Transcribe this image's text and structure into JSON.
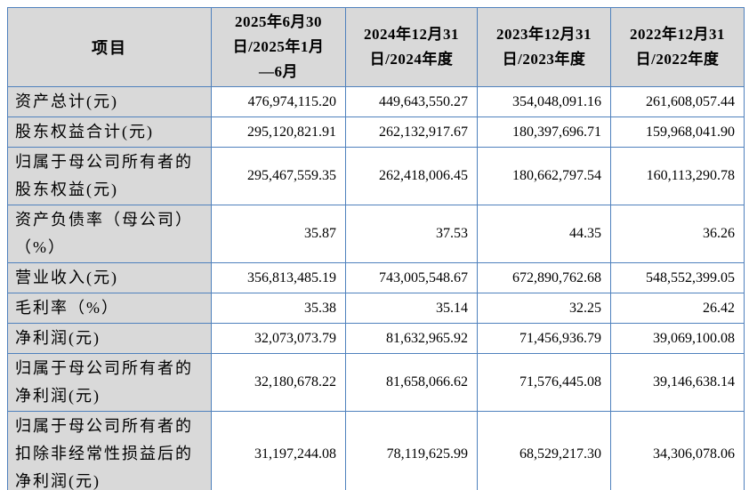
{
  "table": {
    "colors": {
      "border": "#4f81bd",
      "header_bg": "#d9d9d9",
      "cell_bg": "#ffffff",
      "text": "#000000"
    },
    "header": {
      "item_label": "项目",
      "periods": [
        "2025年6月30\n日/2025年1月\n—6月",
        "2024年12月31\n日/2024年度",
        "2023年12月31\n日/2023年度",
        "2022年12月31\n日/2022年度"
      ]
    },
    "rows": [
      {
        "label": "资产总计(元)",
        "values": [
          "476,974,115.20",
          "449,643,550.27",
          "354,048,091.16",
          "261,608,057.44"
        ]
      },
      {
        "label": "股东权益合计(元)",
        "values": [
          "295,120,821.91",
          "262,132,917.67",
          "180,397,696.71",
          "159,968,041.90"
        ]
      },
      {
        "label": "归属于母公司所有者的股东权益(元)",
        "values": [
          "295,467,559.35",
          "262,418,006.45",
          "180,662,797.54",
          "160,113,290.78"
        ]
      },
      {
        "label": "资产负债率（母公司）（%）",
        "values": [
          "35.87",
          "37.53",
          "44.35",
          "36.26"
        ]
      },
      {
        "label": "营业收入(元)",
        "values": [
          "356,813,485.19",
          "743,005,548.67",
          "672,890,762.68",
          "548,552,399.05"
        ]
      },
      {
        "label": "毛利率（%）",
        "values": [
          "35.38",
          "35.14",
          "32.25",
          "26.42"
        ]
      },
      {
        "label": "净利润(元)",
        "values": [
          "32,073,073.79",
          "81,632,965.92",
          "71,456,936.79",
          "39,069,100.08"
        ]
      },
      {
        "label": "归属于母公司所有者的净利润(元)",
        "values": [
          "32,180,678.22",
          "81,658,066.62",
          "71,576,445.08",
          "39,146,638.14"
        ]
      },
      {
        "label": "归属于母公司所有者的扣除非经常性损益后的净利润(元)",
        "values": [
          "31,197,244.08",
          "78,119,625.99",
          "68,529,217.30",
          "34,306,078.06"
        ]
      }
    ]
  }
}
